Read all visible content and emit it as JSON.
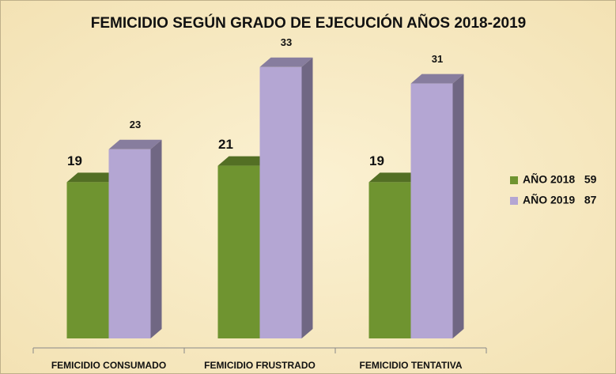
{
  "chart_data": {
    "type": "bar3d",
    "title": "FEMICIDIO SEGÚN GRADO DE EJECUCIÓN AÑOS 2018-2019",
    "categories": [
      "FEMICIDIO CONSUMADO",
      "FEMICIDIO FRUSTRADO",
      "FEMICIDIO TENTATIVA"
    ],
    "series": [
      {
        "name": "AÑO 2018   59",
        "color": "#6f9430",
        "values": [
          19,
          21,
          19
        ]
      },
      {
        "name": "AÑO 2019   87",
        "color": "#b4a6d3",
        "values": [
          23,
          33,
          31
        ]
      }
    ],
    "legend": "right"
  }
}
